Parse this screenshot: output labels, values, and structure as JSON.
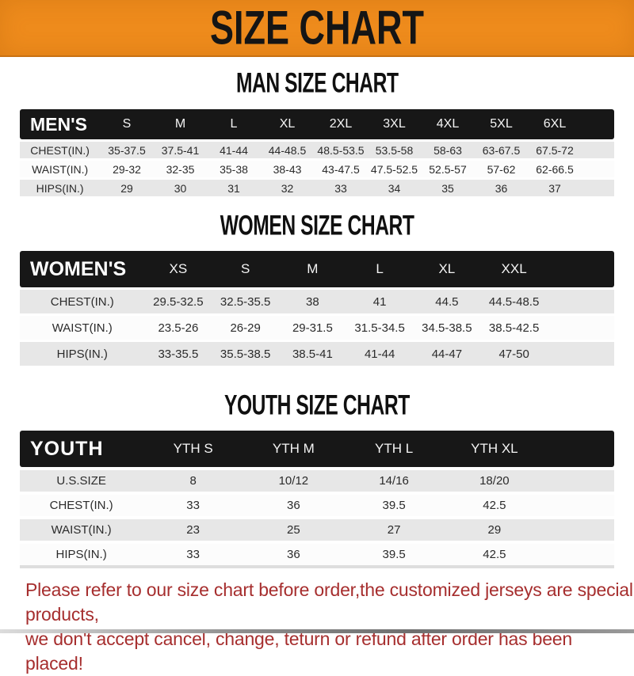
{
  "banner": {
    "title": "SIZE CHART"
  },
  "colors": {
    "banner_bg": "#ee8b1c",
    "table_header_bg": "#171717",
    "row_shade": "#e7e7e7",
    "footnote_red": "#a62e2e"
  },
  "sections": [
    {
      "heading": "MAN SIZE CHART",
      "table": {
        "header_label": "MEN'S",
        "columns": [
          "S",
          "M",
          "L",
          "XL",
          "2XL",
          "3XL",
          "4XL",
          "5XL",
          "6XL"
        ],
        "rows": [
          {
            "label": "CHEST(IN.)",
            "values": [
              "35-37.5",
              "37.5-41",
              "41-44",
              "44-48.5",
              "48.5-53.5",
              "53.5-58",
              "58-63",
              "63-67.5",
              "67.5-72"
            ]
          },
          {
            "label": "WAIST(IN.)",
            "values": [
              "29-32",
              "32-35",
              "35-38",
              "38-43",
              "43-47.5",
              "47.5-52.5",
              "52.5-57",
              "57-62",
              "62-66.5"
            ]
          },
          {
            "label": "HIPS(IN.)",
            "values": [
              "29",
              "30",
              "31",
              "32",
              "33",
              "34",
              "35",
              "36",
              "37"
            ]
          }
        ]
      }
    },
    {
      "heading": "WOMEN SIZE CHART",
      "table": {
        "header_label": "WOMEN'S",
        "columns": [
          "XS",
          "S",
          "M",
          "L",
          "XL",
          "XXL"
        ],
        "rows": [
          {
            "label": "CHEST(IN.)",
            "values": [
              "29.5-32.5",
              "32.5-35.5",
              "38",
              "41",
              "44.5",
              "44.5-48.5"
            ]
          },
          {
            "label": "WAIST(IN.)",
            "values": [
              "23.5-26",
              "26-29",
              "29-31.5",
              "31.5-34.5",
              "34.5-38.5",
              "38.5-42.5"
            ]
          },
          {
            "label": "HIPS(IN.)",
            "values": [
              "33-35.5",
              "35.5-38.5",
              "38.5-41",
              "41-44",
              "44-47",
              "47-50"
            ]
          }
        ]
      }
    },
    {
      "heading": "YOUTH SIZE CHART",
      "table": {
        "header_label": "YOUTH",
        "columns": [
          "YTH S",
          "YTH M",
          "YTH L",
          "YTH XL"
        ],
        "rows": [
          {
            "label": "U.S.SIZE",
            "values": [
              "8",
              "10/12",
              "14/16",
              "18/20"
            ]
          },
          {
            "label": "CHEST(IN.)",
            "values": [
              "33",
              "36",
              "39.5",
              "42.5"
            ]
          },
          {
            "label": "WAIST(IN.)",
            "values": [
              "23",
              "25",
              "27",
              "29"
            ]
          },
          {
            "label": "HIPS(IN.)",
            "values": [
              "33",
              "36",
              "39.5",
              "42.5"
            ]
          }
        ]
      }
    }
  ],
  "footnote": {
    "line1": "Please refer to our size chart before order,the customized jerseys are special products,",
    "line2": "we don't accept cancel, change, teturn or refund after order has been placed!"
  }
}
